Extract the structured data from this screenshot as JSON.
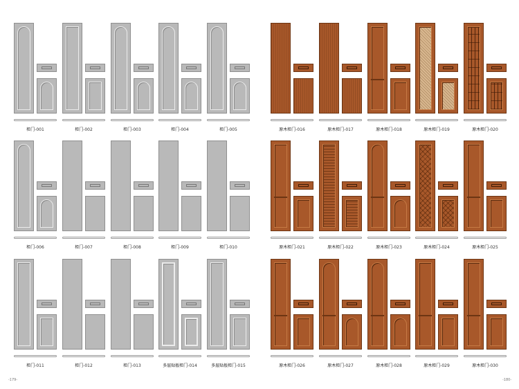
{
  "doors": [
    {
      "label": "柜门-001",
      "style": "grey-arch"
    },
    {
      "label": "柜门-002",
      "style": "grey-frame"
    },
    {
      "label": "柜门-003",
      "style": "grey-arch"
    },
    {
      "label": "柜门-004",
      "style": "grey-arch"
    },
    {
      "label": "柜门-005",
      "style": "grey-arch"
    },
    {
      "label": "原木柜门-016",
      "style": "wood-plain"
    },
    {
      "label": "原木柜门-017",
      "style": "wood-plain"
    },
    {
      "label": "原木柜门-018",
      "style": "wood-frame"
    },
    {
      "label": "原木柜门-019",
      "style": "wood-rattan"
    },
    {
      "label": "原木柜门-020",
      "style": "wood-grid"
    },
    {
      "label": "柜门-006",
      "style": "grey-arch"
    },
    {
      "label": "柜门-007",
      "style": "grey-flat"
    },
    {
      "label": "柜门-008",
      "style": "grey-flat"
    },
    {
      "label": "柜门-009",
      "style": "grey-flat"
    },
    {
      "label": "柜门-010",
      "style": "grey-flat"
    },
    {
      "label": "原木柜门-021",
      "style": "wood-frame"
    },
    {
      "label": "原木柜门-022",
      "style": "wood-slats"
    },
    {
      "label": "原木柜门-023",
      "style": "wood-arch"
    },
    {
      "label": "原木柜门-024",
      "style": "wood-lattice"
    },
    {
      "label": "原木柜门-025",
      "style": "wood-frame"
    },
    {
      "label": "柜门-011",
      "style": "grey-frame"
    },
    {
      "label": "柜门-012",
      "style": "grey-flat"
    },
    {
      "label": "柜门-013",
      "style": "grey-flat"
    },
    {
      "label": "多层贴板柜门-014",
      "style": "grey-deep"
    },
    {
      "label": "多层贴板柜门-015",
      "style": "grey-frame"
    },
    {
      "label": "原木柜门-026",
      "style": "wood-frame"
    },
    {
      "label": "原木柜门-027",
      "style": "wood-arch"
    },
    {
      "label": "原木柜门-028",
      "style": "wood-arch"
    },
    {
      "label": "原木柜门-029",
      "style": "wood-frame"
    },
    {
      "label": "原木柜门-030",
      "style": "wood-frame"
    }
  ],
  "page_numbers": {
    "left": "-179-",
    "right": "-180-"
  }
}
